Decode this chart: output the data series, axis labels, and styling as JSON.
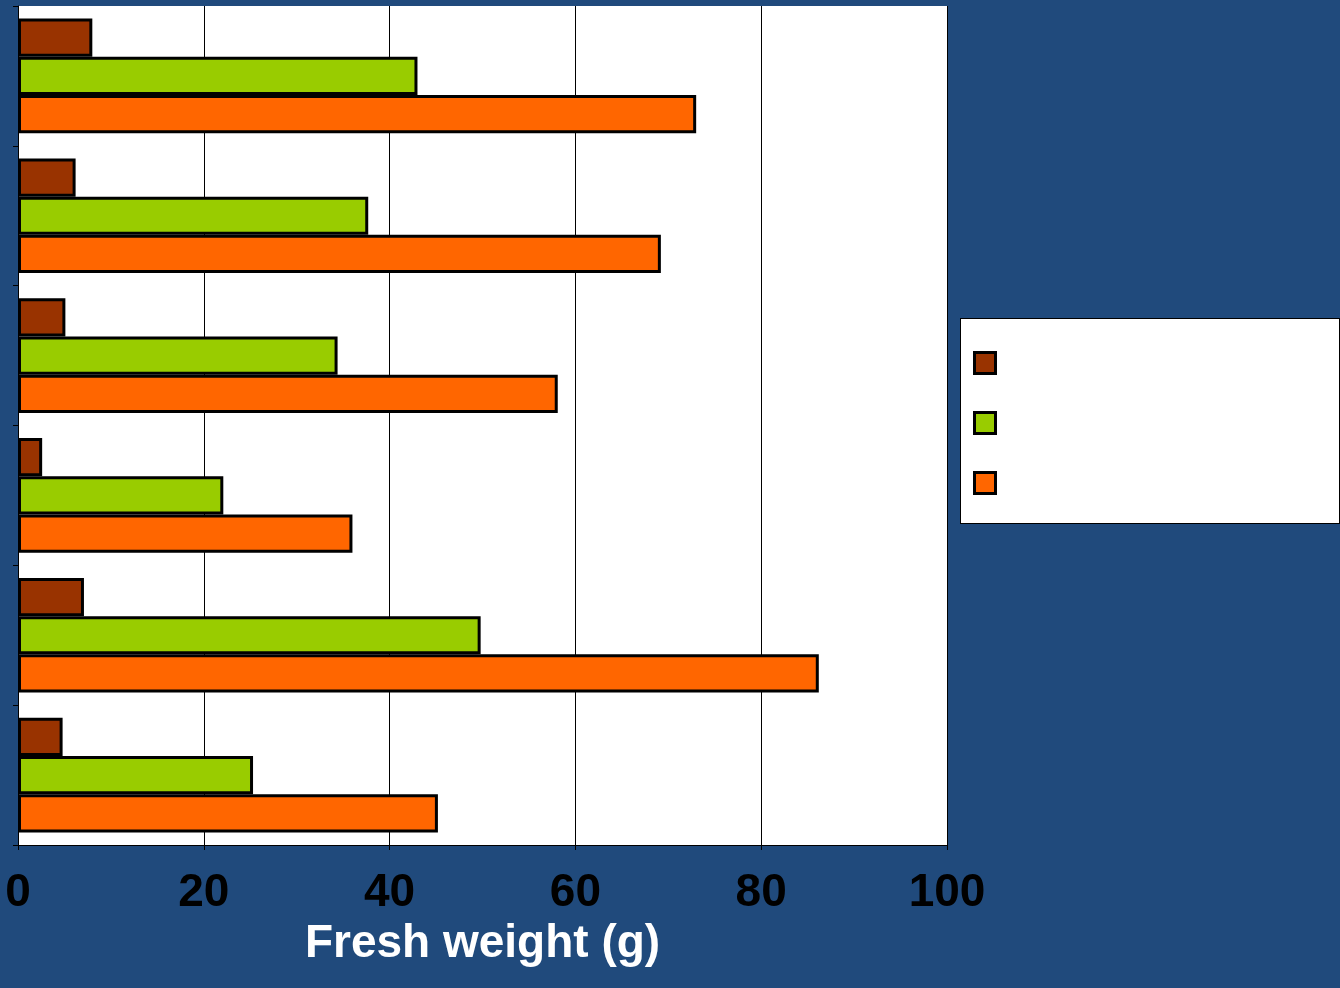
{
  "chart_data": {
    "type": "bar",
    "orientation": "horizontal",
    "xlabel": "Fresh weight (g)",
    "categories": [
      null,
      null,
      null,
      null,
      null,
      null
    ],
    "series": [
      {
        "color": "#993300",
        "values": [
          8,
          6.2,
          5.1,
          2.6,
          7.1,
          4.8
        ]
      },
      {
        "color": "#99cc00",
        "values": [
          43,
          37.7,
          34.4,
          22.1,
          49.8,
          25.3
        ]
      },
      {
        "color": "#ff6600",
        "values": [
          73,
          69.2,
          58.1,
          36,
          86.2,
          45.2
        ]
      }
    ],
    "xlim": [
      0,
      100
    ],
    "xticks": [
      0,
      20,
      40,
      60,
      80,
      100
    ],
    "grid": "x"
  }
}
